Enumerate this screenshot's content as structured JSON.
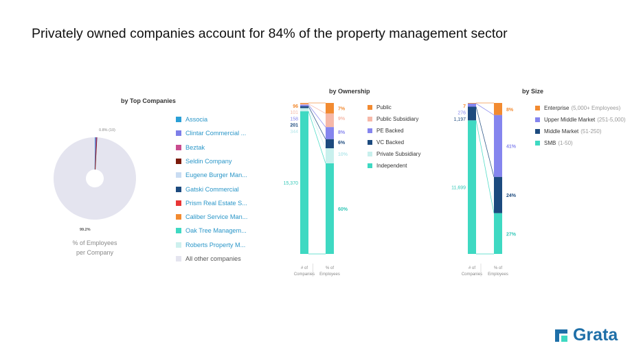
{
  "title": "Privately owned companies account for 84% of the property management sector",
  "sections": {
    "top_companies": "by Top Companies",
    "ownership": "by Ownership",
    "size": "by Size"
  },
  "pie": {
    "caption_line1": "% of Employees",
    "caption_line2": "per Company",
    "small_label": "0.8% (10)",
    "big_label": "99.2%"
  },
  "companies_legend": [
    {
      "name": "Associa",
      "color": "#2a9fd6"
    },
    {
      "name": "Clintar Commercial ...",
      "color": "#7d7ee8"
    },
    {
      "name": "Beztak",
      "color": "#c94c8f"
    },
    {
      "name": "Seldin Company",
      "color": "#7a1a0a"
    },
    {
      "name": "Eugene Burger Man...",
      "color": "#c9dcf2"
    },
    {
      "name": "Gatski Commercial",
      "color": "#1c4a7e"
    },
    {
      "name": "Prism Real Estate S...",
      "color": "#e83535"
    },
    {
      "name": "Caliber Service Man...",
      "color": "#f28a30"
    },
    {
      "name": "Oak Tree Managem...",
      "color": "#3ed9c2"
    },
    {
      "name": "Roberts Property M...",
      "color": "#cdf0ee"
    },
    {
      "name": "All other companies",
      "color": "#e4e4ef"
    }
  ],
  "ownership_legend": [
    {
      "name": "Public",
      "color": "#f28a30"
    },
    {
      "name": "Public Subsidiary",
      "color": "#f6b8a8"
    },
    {
      "name": "PE Backed",
      "color": "#8585ee"
    },
    {
      "name": "VC Backed",
      "color": "#1c4a7e"
    },
    {
      "name": "Private Subsidiary",
      "color": "#c8f0ed"
    },
    {
      "name": "Independent",
      "color": "#3ed9c2"
    }
  ],
  "size_legend": [
    {
      "name": "Enterprise",
      "sub": "(5,000+ Employees)",
      "color": "#f28a30"
    },
    {
      "name": "Upper Middle Market",
      "sub": "(251-5,000)",
      "color": "#8585ee"
    },
    {
      "name": "Middle Market",
      "sub": "(51-250)",
      "color": "#1c4a7e"
    },
    {
      "name": "SMB",
      "sub": "(1-50)",
      "color": "#3ed9c2"
    }
  ],
  "axis_labels": {
    "companies_l1": "# of",
    "companies_l2": "Companies",
    "employees_l1": "% of",
    "employees_l2": "Employees"
  },
  "logo": {
    "text": "Grata",
    "color": "#1e6fa8"
  },
  "chart_data": [
    {
      "type": "pie",
      "title": "by Top Companies",
      "slices": [
        {
          "label": "Top companies",
          "value": 0.8,
          "color": "#7d7ee8"
        },
        {
          "label": "All other companies",
          "value": 99.2,
          "color": "#e4e4ef"
        }
      ],
      "labels": [
        "0.8% (10)",
        "99.2%"
      ]
    },
    {
      "type": "bar",
      "title": "by Ownership",
      "categories": [
        "Public",
        "Public Subsidiary",
        "PE Backed",
        "VC Backed",
        "Private Subsidiary",
        "Independent"
      ],
      "colors": [
        "#f28a30",
        "#f6b8a8",
        "#8585ee",
        "#1c4a7e",
        "#c8f0ed",
        "#3ed9c2"
      ],
      "label_colors": [
        "#f28a30",
        "#f6b8a8",
        "#8585ee",
        "#1c4a7e",
        "#b8e8ec",
        "#2fc6b6"
      ],
      "series": [
        {
          "name": "# of Companies",
          "values": [
            96,
            101,
            158,
            201,
            344,
            15370
          ],
          "labels": [
            "96",
            "101",
            "158",
            "201",
            "344",
            "15,370"
          ]
        },
        {
          "name": "% of Employees",
          "values": [
            7,
            9,
            8,
            6,
            10,
            60
          ],
          "labels": [
            "7%",
            "9%",
            "8%",
            "6%",
            "10%",
            "60%"
          ]
        }
      ]
    },
    {
      "type": "bar",
      "title": "by Size",
      "categories": [
        "Enterprise",
        "Upper Middle Market",
        "Middle Market",
        "SMB"
      ],
      "colors": [
        "#f28a30",
        "#8585ee",
        "#1c4a7e",
        "#3ed9c2"
      ],
      "label_colors": [
        "#f28a30",
        "#8585ee",
        "#1c4a7e",
        "#2fc6b6"
      ],
      "series": [
        {
          "name": "# of Companies",
          "values": [
            7,
            276,
            1197,
            11699
          ],
          "labels": [
            "7",
            "276",
            "1,197",
            "11,699"
          ]
        },
        {
          "name": "% of Employees",
          "values": [
            8,
            41,
            24,
            27
          ],
          "labels": [
            "8%",
            "41%",
            "24%",
            "27%"
          ]
        }
      ]
    }
  ]
}
